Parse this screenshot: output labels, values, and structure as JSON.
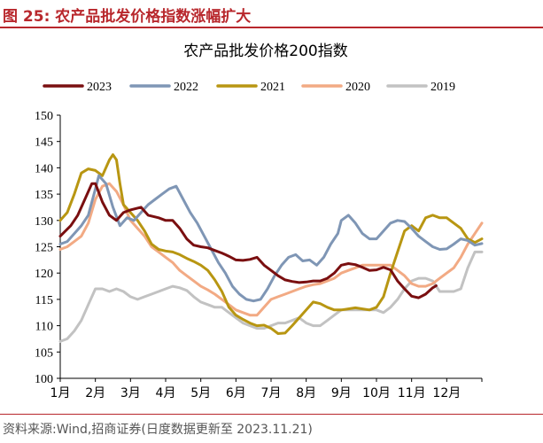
{
  "figure": {
    "title": "图 25:  农产品批发价格指数涨幅扩大",
    "source": "资料来源:Wind,招商证券(日度数据更新至 2023.11.21)"
  },
  "chart_data": {
    "type": "line",
    "title": "农产品批发价格200指数",
    "xlabel": "",
    "ylabel": "",
    "categories": [
      "1月",
      "2月",
      "3月",
      "4月",
      "5月",
      "6月",
      "7月",
      "8月",
      "9月",
      "10月",
      "11月",
      "12月"
    ],
    "ylim": [
      100,
      150
    ],
    "yticks": [
      100,
      105,
      110,
      115,
      120,
      125,
      130,
      135,
      140,
      145,
      150
    ],
    "legend_position": "top",
    "grid": false,
    "x_unit": "month (1.0 = start of January, 13.0 = end of December)",
    "series": [
      {
        "name": "2023",
        "color": "#7a0f10",
        "points": [
          [
            1.0,
            127
          ],
          [
            1.3,
            129
          ],
          [
            1.5,
            131
          ],
          [
            1.7,
            134
          ],
          [
            1.9,
            137
          ],
          [
            2.0,
            137
          ],
          [
            2.2,
            133.5
          ],
          [
            2.4,
            131
          ],
          [
            2.6,
            130
          ],
          [
            2.8,
            131.5
          ],
          [
            3.0,
            132
          ],
          [
            3.3,
            132.5
          ],
          [
            3.5,
            131
          ],
          [
            3.8,
            130.5
          ],
          [
            4.0,
            130
          ],
          [
            4.2,
            130
          ],
          [
            4.4,
            128.5
          ],
          [
            4.6,
            126.5
          ],
          [
            4.8,
            125.3
          ],
          [
            5.0,
            125
          ],
          [
            5.2,
            124.8
          ],
          [
            5.4,
            124.3
          ],
          [
            5.6,
            123.8
          ],
          [
            5.8,
            123.2
          ],
          [
            6.0,
            122.5
          ],
          [
            6.2,
            122.4
          ],
          [
            6.4,
            122.6
          ],
          [
            6.6,
            123
          ],
          [
            6.8,
            121.5
          ],
          [
            7.0,
            120.5
          ],
          [
            7.2,
            119.5
          ],
          [
            7.4,
            118.7
          ],
          [
            7.6,
            118.4
          ],
          [
            7.8,
            118.2
          ],
          [
            8.0,
            118.3
          ],
          [
            8.2,
            118.5
          ],
          [
            8.4,
            118.5
          ],
          [
            8.6,
            119
          ],
          [
            8.8,
            120
          ],
          [
            9.0,
            121.5
          ],
          [
            9.2,
            121.8
          ],
          [
            9.4,
            121.6
          ],
          [
            9.6,
            121.1
          ],
          [
            9.8,
            120.5
          ],
          [
            10.0,
            120.6
          ],
          [
            10.2,
            121.1
          ],
          [
            10.4,
            120.6
          ],
          [
            10.6,
            118.5
          ],
          [
            10.8,
            117
          ],
          [
            11.0,
            115.6
          ],
          [
            11.2,
            115.3
          ],
          [
            11.4,
            116
          ],
          [
            11.6,
            117.2
          ],
          [
            11.7,
            117.6
          ]
        ]
      },
      {
        "name": "2022",
        "color": "#7f96b5",
        "points": [
          [
            1.0,
            125.5
          ],
          [
            1.2,
            126
          ],
          [
            1.4,
            127.5
          ],
          [
            1.6,
            129
          ],
          [
            1.8,
            131
          ],
          [
            2.0,
            136
          ],
          [
            2.1,
            138.5
          ],
          [
            2.3,
            137
          ],
          [
            2.5,
            132.5
          ],
          [
            2.7,
            129
          ],
          [
            2.9,
            130.5
          ],
          [
            3.1,
            130
          ],
          [
            3.3,
            131.5
          ],
          [
            3.5,
            133
          ],
          [
            3.7,
            134
          ],
          [
            3.9,
            135
          ],
          [
            4.1,
            136
          ],
          [
            4.3,
            136.5
          ],
          [
            4.5,
            134
          ],
          [
            4.7,
            131.5
          ],
          [
            4.9,
            129.5
          ],
          [
            5.1,
            127
          ],
          [
            5.3,
            124.5
          ],
          [
            5.5,
            122
          ],
          [
            5.7,
            120
          ],
          [
            5.9,
            117.5
          ],
          [
            6.1,
            116
          ],
          [
            6.3,
            115
          ],
          [
            6.5,
            114.7
          ],
          [
            6.7,
            115
          ],
          [
            6.9,
            117
          ],
          [
            7.1,
            119.5
          ],
          [
            7.3,
            121.5
          ],
          [
            7.5,
            123
          ],
          [
            7.7,
            123.5
          ],
          [
            7.9,
            122.3
          ],
          [
            8.1,
            122.5
          ],
          [
            8.3,
            121.5
          ],
          [
            8.5,
            123
          ],
          [
            8.7,
            125.5
          ],
          [
            8.9,
            127.5
          ],
          [
            9.0,
            130
          ],
          [
            9.2,
            131
          ],
          [
            9.4,
            129.5
          ],
          [
            9.6,
            127.5
          ],
          [
            9.8,
            126.5
          ],
          [
            10.0,
            126.5
          ],
          [
            10.2,
            128
          ],
          [
            10.4,
            129.5
          ],
          [
            10.6,
            130
          ],
          [
            10.8,
            129.8
          ],
          [
            11.0,
            128.5
          ],
          [
            11.2,
            127
          ],
          [
            11.4,
            126
          ],
          [
            11.6,
            125
          ],
          [
            11.8,
            124.5
          ],
          [
            12.0,
            124.6
          ],
          [
            12.2,
            125.5
          ],
          [
            12.4,
            126.5
          ],
          [
            12.6,
            126.2
          ],
          [
            12.8,
            125.3
          ],
          [
            13.0,
            125.6
          ]
        ]
      },
      {
        "name": "2021",
        "color": "#b89612",
        "points": [
          [
            1.0,
            130
          ],
          [
            1.2,
            131.5
          ],
          [
            1.4,
            135
          ],
          [
            1.6,
            139
          ],
          [
            1.8,
            139.8
          ],
          [
            2.0,
            139.5
          ],
          [
            2.2,
            138.5
          ],
          [
            2.4,
            141.5
          ],
          [
            2.5,
            142.5
          ],
          [
            2.6,
            141.5
          ],
          [
            2.7,
            137
          ],
          [
            2.8,
            133
          ],
          [
            3.0,
            131.5
          ],
          [
            3.2,
            130
          ],
          [
            3.4,
            128
          ],
          [
            3.6,
            125.5
          ],
          [
            3.8,
            124.5
          ],
          [
            4.0,
            124.2
          ],
          [
            4.2,
            124
          ],
          [
            4.4,
            123.5
          ],
          [
            4.6,
            122.8
          ],
          [
            4.8,
            122.2
          ],
          [
            5.0,
            121.5
          ],
          [
            5.2,
            120.5
          ],
          [
            5.4,
            118.7
          ],
          [
            5.6,
            116.5
          ],
          [
            5.8,
            113.5
          ],
          [
            6.0,
            112
          ],
          [
            6.2,
            111.2
          ],
          [
            6.4,
            110.5
          ],
          [
            6.6,
            110
          ],
          [
            6.8,
            110.1
          ],
          [
            7.0,
            109.5
          ],
          [
            7.2,
            108.5
          ],
          [
            7.4,
            108.6
          ],
          [
            7.6,
            110
          ],
          [
            7.8,
            111.5
          ],
          [
            8.0,
            113
          ],
          [
            8.2,
            114.5
          ],
          [
            8.4,
            114.2
          ],
          [
            8.6,
            113.5
          ],
          [
            8.8,
            113
          ],
          [
            9.0,
            113
          ],
          [
            9.2,
            113.2
          ],
          [
            9.4,
            113.4
          ],
          [
            9.6,
            113.2
          ],
          [
            9.8,
            113
          ],
          [
            10.0,
            113.5
          ],
          [
            10.2,
            115.5
          ],
          [
            10.4,
            120
          ],
          [
            10.6,
            124
          ],
          [
            10.8,
            128
          ],
          [
            11.0,
            129
          ],
          [
            11.2,
            128
          ],
          [
            11.4,
            130.5
          ],
          [
            11.6,
            131
          ],
          [
            11.8,
            130.5
          ],
          [
            12.0,
            130.5
          ],
          [
            12.2,
            129.5
          ],
          [
            12.4,
            128.5
          ],
          [
            12.6,
            126.5
          ],
          [
            12.8,
            125.8
          ],
          [
            13.0,
            126.5
          ]
        ]
      },
      {
        "name": "2020",
        "color": "#f2aa84",
        "points": [
          [
            1.0,
            124.5
          ],
          [
            1.2,
            125
          ],
          [
            1.4,
            126
          ],
          [
            1.6,
            127
          ],
          [
            1.8,
            129.5
          ],
          [
            2.0,
            134
          ],
          [
            2.2,
            136.5
          ],
          [
            2.4,
            137
          ],
          [
            2.6,
            135.5
          ],
          [
            2.8,
            133
          ],
          [
            3.0,
            130
          ],
          [
            3.2,
            128.5
          ],
          [
            3.4,
            127
          ],
          [
            3.6,
            125
          ],
          [
            3.8,
            124
          ],
          [
            4.0,
            123
          ],
          [
            4.2,
            122
          ],
          [
            4.4,
            120.5
          ],
          [
            4.6,
            119.5
          ],
          [
            4.8,
            118.5
          ],
          [
            5.0,
            117.5
          ],
          [
            5.2,
            116.8
          ],
          [
            5.4,
            116
          ],
          [
            5.6,
            115
          ],
          [
            5.8,
            114
          ],
          [
            6.0,
            113
          ],
          [
            6.2,
            112.5
          ],
          [
            6.4,
            112
          ],
          [
            6.6,
            112
          ],
          [
            6.8,
            113.5
          ],
          [
            7.0,
            115
          ],
          [
            7.2,
            115.5
          ],
          [
            7.4,
            116
          ],
          [
            7.6,
            116.5
          ],
          [
            7.8,
            117
          ],
          [
            8.0,
            117.5
          ],
          [
            8.2,
            117.8
          ],
          [
            8.4,
            118
          ],
          [
            8.6,
            118.5
          ],
          [
            8.8,
            119
          ],
          [
            9.0,
            120
          ],
          [
            9.2,
            120.5
          ],
          [
            9.4,
            121
          ],
          [
            9.6,
            121.5
          ],
          [
            9.8,
            121.5
          ],
          [
            10.0,
            121.5
          ],
          [
            10.2,
            121.5
          ],
          [
            10.4,
            121.5
          ],
          [
            10.6,
            120.5
          ],
          [
            10.8,
            119.5
          ],
          [
            11.0,
            118
          ],
          [
            11.2,
            117.5
          ],
          [
            11.4,
            117.5
          ],
          [
            11.6,
            118
          ],
          [
            11.8,
            119
          ],
          [
            12.0,
            120
          ],
          [
            12.2,
            121
          ],
          [
            12.4,
            123
          ],
          [
            12.6,
            125.5
          ],
          [
            12.8,
            127.5
          ],
          [
            13.0,
            129.5
          ]
        ]
      },
      {
        "name": "2019",
        "color": "#c2c2c2",
        "points": [
          [
            1.0,
            107
          ],
          [
            1.2,
            107.5
          ],
          [
            1.4,
            109
          ],
          [
            1.6,
            111
          ],
          [
            1.8,
            114
          ],
          [
            2.0,
            117
          ],
          [
            2.2,
            117
          ],
          [
            2.4,
            116.5
          ],
          [
            2.6,
            117
          ],
          [
            2.8,
            116.5
          ],
          [
            3.0,
            115.5
          ],
          [
            3.2,
            115
          ],
          [
            3.4,
            115.5
          ],
          [
            3.6,
            116
          ],
          [
            3.8,
            116.5
          ],
          [
            4.0,
            117
          ],
          [
            4.2,
            117.5
          ],
          [
            4.4,
            117.2
          ],
          [
            4.6,
            116.7
          ],
          [
            4.8,
            115.5
          ],
          [
            5.0,
            114.5
          ],
          [
            5.2,
            114
          ],
          [
            5.4,
            113.5
          ],
          [
            5.6,
            113.5
          ],
          [
            5.8,
            112.5
          ],
          [
            6.0,
            111.5
          ],
          [
            6.2,
            110.5
          ],
          [
            6.4,
            110
          ],
          [
            6.6,
            109.5
          ],
          [
            6.8,
            109.5
          ],
          [
            7.0,
            110
          ],
          [
            7.2,
            110.5
          ],
          [
            7.4,
            110.5
          ],
          [
            7.6,
            111
          ],
          [
            7.8,
            111.5
          ],
          [
            8.0,
            110.5
          ],
          [
            8.2,
            110
          ],
          [
            8.4,
            110
          ],
          [
            8.6,
            111
          ],
          [
            8.8,
            112
          ],
          [
            9.0,
            113
          ],
          [
            9.2,
            113
          ],
          [
            9.4,
            113
          ],
          [
            9.6,
            113
          ],
          [
            9.8,
            113
          ],
          [
            10.0,
            113
          ],
          [
            10.2,
            112.5
          ],
          [
            10.4,
            113.5
          ],
          [
            10.6,
            115
          ],
          [
            10.8,
            117
          ],
          [
            11.0,
            118.5
          ],
          [
            11.2,
            119
          ],
          [
            11.4,
            119
          ],
          [
            11.6,
            118.5
          ],
          [
            11.8,
            116.5
          ],
          [
            12.0,
            116.5
          ],
          [
            12.2,
            116.5
          ],
          [
            12.4,
            117
          ],
          [
            12.6,
            121
          ],
          [
            12.8,
            124
          ],
          [
            13.0,
            124
          ]
        ]
      }
    ]
  }
}
